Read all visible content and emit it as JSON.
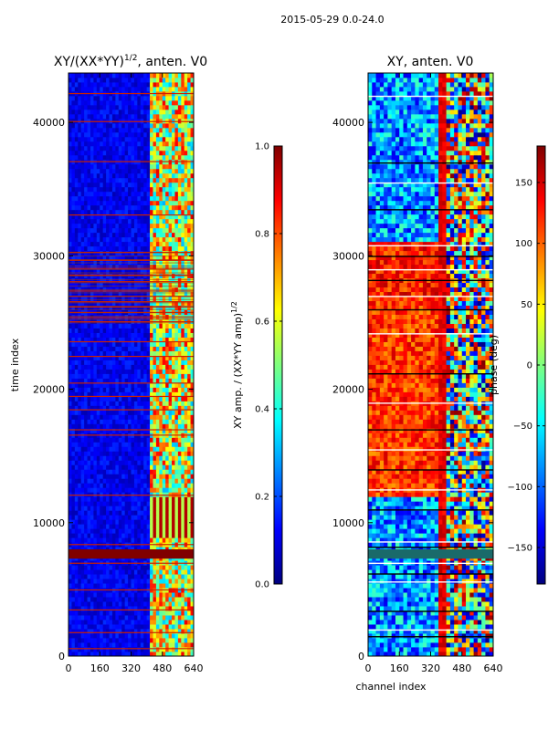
{
  "suptitle": "2015-05-29 0.0-24.0",
  "chart_data": [
    {
      "type": "heatmap",
      "title": "XY/(XX*YY)^{1/2}, anten. V0",
      "title_main": "XY/(XX*YY)",
      "title_exp": "1/2",
      "title_tail": ", anten. V0",
      "ylabel": "time index",
      "xlim": [
        0,
        640
      ],
      "ylim": [
        0,
        43700
      ],
      "xticks": [
        0,
        160,
        320,
        480,
        640
      ],
      "yticks": [
        0,
        10000,
        20000,
        30000,
        40000
      ],
      "colormap": "jet",
      "colorbar": {
        "label": "XY amp. / (XX*YY amp)^{1/2}",
        "label_main": "XY amp. / (XX*YY amp)",
        "label_exp": "1/2",
        "range": [
          0.0,
          1.0
        ],
        "ticks": [
          "0.0",
          "0.2",
          "0.4",
          "0.6",
          "0.8",
          "1.0"
        ]
      },
      "features": {
        "background_value": 0.1,
        "active_channel_band": [
          410,
          640
        ],
        "saturated_time_band": [
          7300,
          8000
        ],
        "saturated_value": 1.0,
        "dense_flag_lines_time_range": [
          25000,
          30500
        ]
      }
    },
    {
      "type": "heatmap",
      "title": "XY, anten. V0",
      "xlabel": "channel index",
      "xlim": [
        0,
        640
      ],
      "ylim": [
        0,
        43700
      ],
      "xticks": [
        0,
        160,
        320,
        480,
        640
      ],
      "yticks": [
        0,
        10000,
        20000,
        30000,
        40000
      ],
      "colormap": "jet",
      "colorbar": {
        "label": "phase (deg)",
        "range": [
          -180,
          180
        ],
        "ticks": [
          "−150",
          "−100",
          "−50",
          "0",
          "50",
          "100",
          "150"
        ]
      },
      "features": {
        "high_phase_time_range": [
          12000,
          27000
        ],
        "saturated_time_band": [
          7300,
          8000
        ]
      }
    }
  ]
}
